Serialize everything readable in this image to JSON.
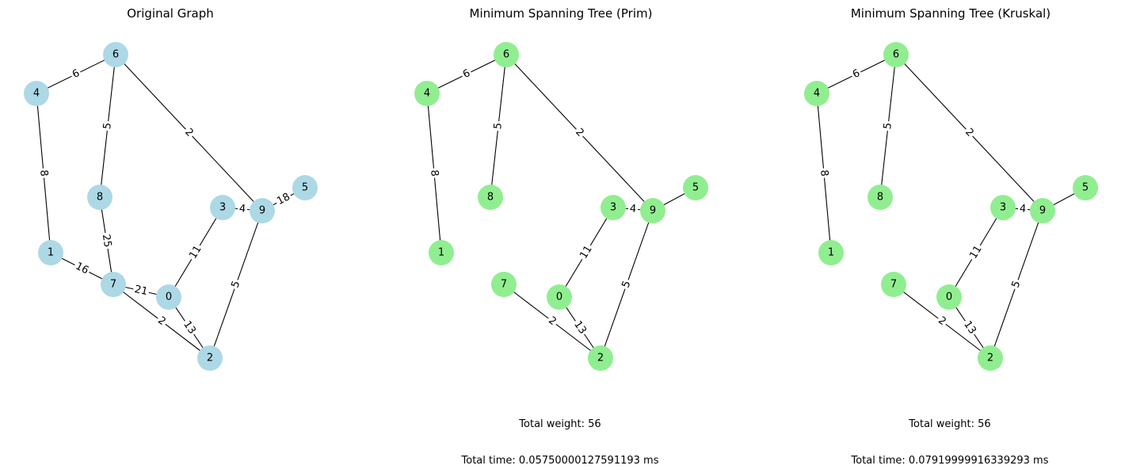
{
  "panels": [
    {
      "title": "Original Graph",
      "node_color": "#add8e6",
      "nodes": [
        "0",
        "1",
        "2",
        "3",
        "4",
        "5",
        "6",
        "7",
        "8",
        "9"
      ],
      "edges": [
        {
          "from": "4",
          "to": "6",
          "weight": "6"
        },
        {
          "from": "6",
          "to": "8",
          "weight": "5"
        },
        {
          "from": "6",
          "to": "9",
          "weight": "2"
        },
        {
          "from": "4",
          "to": "1",
          "weight": "8"
        },
        {
          "from": "8",
          "to": "7",
          "weight": "25"
        },
        {
          "from": "1",
          "to": "7",
          "weight": "16"
        },
        {
          "from": "7",
          "to": "0",
          "weight": "21"
        },
        {
          "from": "7",
          "to": "2",
          "weight": "2"
        },
        {
          "from": "0",
          "to": "2",
          "weight": "13"
        },
        {
          "from": "0",
          "to": "3",
          "weight": "11"
        },
        {
          "from": "3",
          "to": "9",
          "weight": "4"
        },
        {
          "from": "9",
          "to": "5",
          "weight": "18"
        },
        {
          "from": "9",
          "to": "2",
          "weight": "5"
        }
      ],
      "footer": []
    },
    {
      "title": "Minimum Spanning Tree (Prim)",
      "node_color": "#90ee90",
      "nodes": [
        "0",
        "1",
        "2",
        "3",
        "4",
        "5",
        "6",
        "7",
        "8",
        "9"
      ],
      "edges": [
        {
          "from": "4",
          "to": "6",
          "weight": "6"
        },
        {
          "from": "6",
          "to": "8",
          "weight": "5"
        },
        {
          "from": "6",
          "to": "9",
          "weight": "2"
        },
        {
          "from": "4",
          "to": "1",
          "weight": "8"
        },
        {
          "from": "3",
          "to": "9",
          "weight": "4"
        },
        {
          "from": "9",
          "to": "5",
          "weight": ""
        },
        {
          "from": "0",
          "to": "3",
          "weight": "11"
        },
        {
          "from": "9",
          "to": "2",
          "weight": "5"
        },
        {
          "from": "7",
          "to": "2",
          "weight": "2"
        },
        {
          "from": "0",
          "to": "2",
          "weight": "13"
        }
      ],
      "footer": [
        "Total weight: 56",
        "Total time: 0.05750000127591193 ms"
      ]
    },
    {
      "title": "Minimum Spanning Tree (Kruskal)",
      "node_color": "#90ee90",
      "nodes": [
        "0",
        "1",
        "2",
        "3",
        "4",
        "5",
        "6",
        "7",
        "8",
        "9"
      ],
      "edges": [
        {
          "from": "4",
          "to": "6",
          "weight": "6"
        },
        {
          "from": "6",
          "to": "8",
          "weight": "5"
        },
        {
          "from": "6",
          "to": "9",
          "weight": "2"
        },
        {
          "from": "4",
          "to": "1",
          "weight": "8"
        },
        {
          "from": "3",
          "to": "9",
          "weight": "4"
        },
        {
          "from": "9",
          "to": "5",
          "weight": ""
        },
        {
          "from": "0",
          "to": "3",
          "weight": "11"
        },
        {
          "from": "9",
          "to": "2",
          "weight": "5"
        },
        {
          "from": "7",
          "to": "2",
          "weight": "2"
        },
        {
          "from": "0",
          "to": "2",
          "weight": "13"
        }
      ],
      "footer": [
        "Total weight: 56",
        "Total time: 0.07919999916339293 ms"
      ]
    }
  ]
}
